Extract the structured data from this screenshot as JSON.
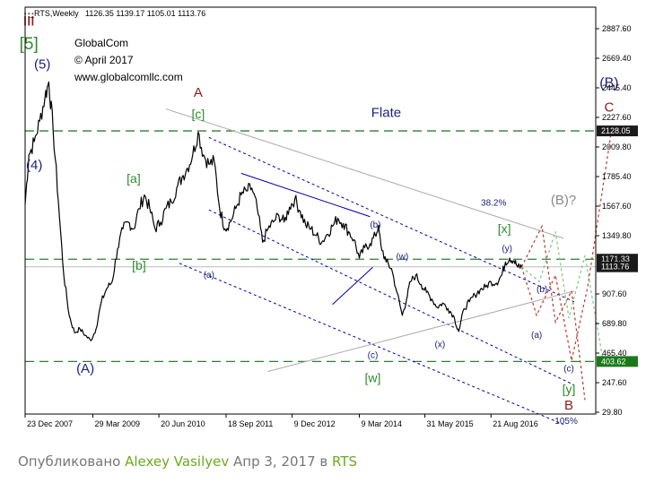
{
  "chart_data": {
    "type": "line",
    "symbol_header": "_RTS,Weekly",
    "ohlc_header": "1126.35 1139.17 1105.01 1113.76",
    "brand": {
      "name": "GlobalCom",
      "date": "© April 2017",
      "url": "www.globalcomllc.com"
    },
    "y_ticks": [
      "2887.60",
      "2669.40",
      "2445.40",
      "2227.60",
      "2009.80",
      "1785.40",
      "1567.60",
      "1349.80",
      "907.60",
      "689.80",
      "465.40",
      "247.60",
      "29.80"
    ],
    "x_ticks": [
      "23 Dec 2007",
      "29 Mar 2009",
      "20 Jun 2010",
      "18 Sep 2011",
      "9 Dec 2012",
      "9 Mar 2014",
      "31 May 2015",
      "21 Aug 2016"
    ],
    "ylim": [
      29.8,
      2960
    ],
    "xlim": [
      2007.98,
      2018.6
    ],
    "price_series": [
      [
        2007.98,
        1580
      ],
      [
        2008.05,
        1950
      ],
      [
        2008.15,
        2050
      ],
      [
        2008.25,
        2200
      ],
      [
        2008.35,
        2380
      ],
      [
        2008.42,
        2490
      ],
      [
        2008.5,
        2150
      ],
      [
        2008.6,
        1600
      ],
      [
        2008.7,
        1050
      ],
      [
        2008.8,
        750
      ],
      [
        2008.9,
        620
      ],
      [
        2009.0,
        650
      ],
      [
        2009.1,
        600
      ],
      [
        2009.2,
        560
      ],
      [
        2009.3,
        650
      ],
      [
        2009.4,
        850
      ],
      [
        2009.5,
        950
      ],
      [
        2009.6,
        1000
      ],
      [
        2009.7,
        1250
      ],
      [
        2009.8,
        1400
      ],
      [
        2009.9,
        1450
      ],
      [
        2010.0,
        1400
      ],
      [
        2010.1,
        1550
      ],
      [
        2010.2,
        1650
      ],
      [
        2010.3,
        1550
      ],
      [
        2010.4,
        1400
      ],
      [
        2010.5,
        1450
      ],
      [
        2010.6,
        1550
      ],
      [
        2010.7,
        1600
      ],
      [
        2010.8,
        1700
      ],
      [
        2010.9,
        1780
      ],
      [
        2011.0,
        1850
      ],
      [
        2011.1,
        1950
      ],
      [
        2011.2,
        2120
      ],
      [
        2011.3,
        1950
      ],
      [
        2011.4,
        1880
      ],
      [
        2011.5,
        1900
      ],
      [
        2011.6,
        1550
      ],
      [
        2011.7,
        1400
      ],
      [
        2011.8,
        1450
      ],
      [
        2011.9,
        1550
      ],
      [
        2012.0,
        1650
      ],
      [
        2012.1,
        1680
      ],
      [
        2012.2,
        1700
      ],
      [
        2012.3,
        1550
      ],
      [
        2012.4,
        1300
      ],
      [
        2012.5,
        1400
      ],
      [
        2012.6,
        1450
      ],
      [
        2012.7,
        1500
      ],
      [
        2012.8,
        1450
      ],
      [
        2012.9,
        1560
      ],
      [
        2013.0,
        1620
      ],
      [
        2013.1,
        1530
      ],
      [
        2013.2,
        1430
      ],
      [
        2013.3,
        1400
      ],
      [
        2013.4,
        1350
      ],
      [
        2013.5,
        1300
      ],
      [
        2013.6,
        1360
      ],
      [
        2013.7,
        1420
      ],
      [
        2013.8,
        1480
      ],
      [
        2013.9,
        1440
      ],
      [
        2014.0,
        1380
      ],
      [
        2014.1,
        1320
      ],
      [
        2014.2,
        1180
      ],
      [
        2014.3,
        1260
      ],
      [
        2014.4,
        1290
      ],
      [
        2014.5,
        1350
      ],
      [
        2014.55,
        1420
      ],
      [
        2014.6,
        1280
      ],
      [
        2014.7,
        1150
      ],
      [
        2014.8,
        1100
      ],
      [
        2014.9,
        920
      ],
      [
        2015.0,
        750
      ],
      [
        2015.08,
        870
      ],
      [
        2015.15,
        1000
      ],
      [
        2015.25,
        1050
      ],
      [
        2015.35,
        980
      ],
      [
        2015.45,
        920
      ],
      [
        2015.55,
        870
      ],
      [
        2015.65,
        810
      ],
      [
        2015.75,
        840
      ],
      [
        2015.85,
        800
      ],
      [
        2015.95,
        750
      ],
      [
        2016.05,
        630
      ],
      [
        2016.15,
        800
      ],
      [
        2016.25,
        850
      ],
      [
        2016.35,
        900
      ],
      [
        2016.45,
        940
      ],
      [
        2016.55,
        960
      ],
      [
        2016.65,
        1000
      ],
      [
        2016.75,
        990
      ],
      [
        2016.85,
        1050
      ],
      [
        2016.92,
        1150
      ],
      [
        2017.0,
        1180
      ],
      [
        2017.08,
        1160
      ],
      [
        2017.15,
        1110
      ],
      [
        2017.22,
        1113.76
      ]
    ],
    "forecast_paths": [
      {
        "color": "#c0392b",
        "points": [
          [
            2017.22,
            1113.76
          ],
          [
            2017.5,
            750
          ],
          [
            2017.85,
            1050
          ],
          [
            2018.15,
            410
          ],
          [
            2018.45,
            960
          ],
          [
            2018.9,
            2150
          ]
        ]
      },
      {
        "color": "#b03a2e",
        "points": [
          [
            2017.22,
            1113.76
          ],
          [
            2017.6,
            1420
          ],
          [
            2017.85,
            700
          ],
          [
            2018.15,
            930
          ],
          [
            2018.4,
            120
          ]
        ]
      },
      {
        "color": "#7cc47c",
        "points": [
          [
            2017.22,
            1113.76
          ],
          [
            2017.55,
            1000
          ],
          [
            2017.85,
            1380
          ],
          [
            2018.1,
            730
          ],
          [
            2018.4,
            1200
          ],
          [
            2018.75,
            380
          ]
        ]
      }
    ],
    "horizontal_levels": [
      {
        "value": 2128.05,
        "label": "2128.05",
        "style": "green-dashed",
        "bg": "#1a1a1a"
      },
      {
        "value": 1171.33,
        "label": "1171.33",
        "style": "green-dashed",
        "bg": "#1a1a1a"
      },
      {
        "value": 403.62,
        "label": "403.62",
        "style": "green-dashed",
        "bg": "#1a7a1a"
      },
      {
        "value": 1113.76,
        "label": "1113.76",
        "style": "price",
        "bg": "#1a1a1a"
      }
    ],
    "channels": [
      {
        "color": "#0000aa",
        "dash": "3,3",
        "points": [
          [
            2011.4,
            2080
          ],
          [
            2018.2,
            850
          ]
        ]
      },
      {
        "color": "#0000aa",
        "dash": "3,3",
        "points": [
          [
            2011.4,
            1540
          ],
          [
            2018.2,
            230
          ]
        ]
      },
      {
        "color": "#0000aa",
        "dash": "3,3",
        "points": [
          [
            2010.85,
            1140
          ],
          [
            2018.0,
            -60
          ]
        ]
      },
      {
        "color": "#0000aa",
        "dash": "",
        "points": [
          [
            2012.0,
            1810
          ],
          [
            2014.4,
            1490
          ]
        ]
      },
      {
        "color": "#0000aa",
        "dash": "",
        "points": [
          [
            2013.7,
            830
          ],
          [
            2014.45,
            1110
          ]
        ]
      },
      {
        "color": "#aaaaaa",
        "dash": "",
        "points": [
          [
            2010.6,
            2290
          ],
          [
            2018.0,
            1330
          ]
        ]
      },
      {
        "color": "#aaaaaa",
        "dash": "",
        "points": [
          [
            2012.5,
            330
          ],
          [
            2018.2,
            930
          ]
        ]
      }
    ],
    "annotations": [
      {
        "text": "iii",
        "x": 2008.05,
        "y": 2910,
        "color": "#8b1a1a",
        "size": 19
      },
      {
        "text": "[5]",
        "x": 2008.05,
        "y": 2735,
        "color": "#2e8b2e",
        "size": 19
      },
      {
        "text": "(5)",
        "x": 2008.3,
        "y": 2590,
        "color": "#1a237e",
        "size": 15
      },
      {
        "text": "(4)",
        "x": 2008.15,
        "y": 1840,
        "color": "#1a237e",
        "size": 15
      },
      {
        "text": "A",
        "x": 2011.2,
        "y": 2380,
        "color": "#8b1a1a",
        "size": 15
      },
      {
        "text": "[c]",
        "x": 2011.2,
        "y": 2220,
        "color": "#2e8b2e",
        "size": 14
      },
      {
        "text": "Flate",
        "x": 2014.7,
        "y": 2230,
        "color": "#1a237e",
        "size": 15
      },
      {
        "text": "[a]",
        "x": 2010.0,
        "y": 1740,
        "color": "#2e8b2e",
        "size": 14
      },
      {
        "text": "[b]",
        "x": 2010.1,
        "y": 1090,
        "color": "#2e8b2e",
        "size": 14
      },
      {
        "text": "(a)",
        "x": 2011.4,
        "y": 1030,
        "color": "#1a237e",
        "size": 10
      },
      {
        "text": "(A)",
        "x": 2009.1,
        "y": 320,
        "color": "#1a237e",
        "size": 15
      },
      {
        "text": "(b)",
        "x": 2014.5,
        "y": 1410,
        "color": "#1a237e",
        "size": 10
      },
      {
        "text": "(w)",
        "x": 2015.0,
        "y": 1170,
        "color": "#1a237e",
        "size": 10
      },
      {
        "text": "(c)",
        "x": 2014.45,
        "y": 430,
        "color": "#1a237e",
        "size": 10
      },
      {
        "text": "[w]",
        "x": 2014.45,
        "y": 250,
        "color": "#2e8b2e",
        "size": 14
      },
      {
        "text": "(x)",
        "x": 2015.7,
        "y": 510,
        "color": "#1a237e",
        "size": 10
      },
      {
        "text": "38.2%",
        "x": 2016.7,
        "y": 1570,
        "color": "#1a237e",
        "size": 10
      },
      {
        "text": "[x]",
        "x": 2016.9,
        "y": 1370,
        "color": "#2e8b2e",
        "size": 14
      },
      {
        "text": "(y)",
        "x": 2016.95,
        "y": 1230,
        "color": "#1a237e",
        "size": 10
      },
      {
        "text": "(B)?",
        "x": 2018.0,
        "y": 1580,
        "color": "#888888",
        "size": 15
      },
      {
        "text": "(b)",
        "x": 2017.6,
        "y": 920,
        "color": "#1a237e",
        "size": 10
      },
      {
        "text": "(a)",
        "x": 2017.5,
        "y": 580,
        "color": "#1a237e",
        "size": 10
      },
      {
        "text": "(c)",
        "x": 2018.1,
        "y": 330,
        "color": "#1a237e",
        "size": 10
      },
      {
        "text": "[y]",
        "x": 2018.1,
        "y": 170,
        "color": "#2e8b2e",
        "size": 14
      },
      {
        "text": "B",
        "x": 2018.1,
        "y": 50,
        "color": "#8b1a1a",
        "size": 15
      },
      {
        "text": "105%",
        "x": 2018.05,
        "y": -55,
        "color": "#1a237e",
        "size": 10
      },
      {
        "text": "(B)",
        "x": 2018.85,
        "y": 2450,
        "color": "#1a237e",
        "size": 16
      },
      {
        "text": "C",
        "x": 2018.85,
        "y": 2270,
        "color": "#8b1a1a",
        "size": 15
      }
    ]
  },
  "caption": {
    "prefix": "Опубликовано",
    "author": "Alexey Vasilyev",
    "date": "Апр 3, 2017 в",
    "symbol": "RTS"
  }
}
